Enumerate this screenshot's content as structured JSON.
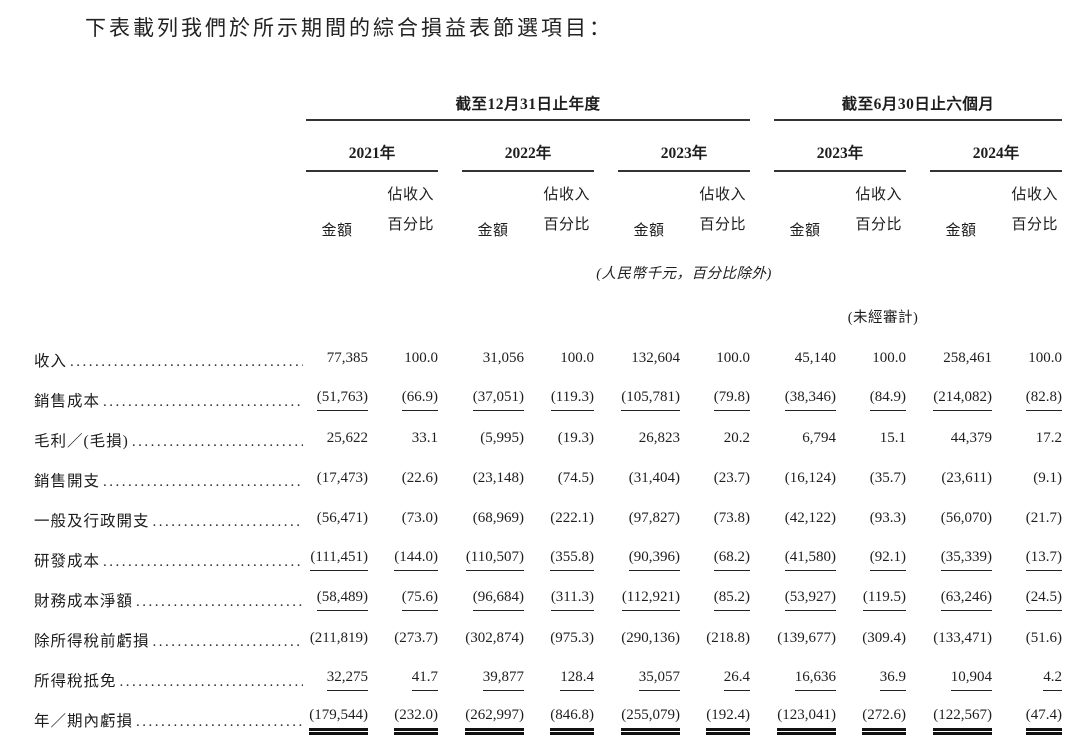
{
  "title": "下表載列我們於所示期間的綜合損益表節選項目：",
  "table": {
    "col_groups": [
      {
        "label": "截至12月31日止年度",
        "years": [
          "2021年",
          "2022年",
          "2023年"
        ]
      },
      {
        "label": "截至6月30日止六個月",
        "years": [
          "2023年",
          "2024年"
        ]
      }
    ],
    "subheaders": {
      "amount": "金額",
      "pct_line1": "佔收入",
      "pct_line2": "百分比"
    },
    "unit_note": "(人民幣千元，百分比除外)",
    "unaudited_note": "(未經審計)",
    "rows": [
      {
        "label": "收入",
        "bold": false,
        "underline": false,
        "double_underline": false,
        "values": [
          "77,385",
          "100.0",
          "31,056",
          "100.0",
          "132,604",
          "100.0",
          "45,140",
          "100.0",
          "258,461",
          "100.0"
        ]
      },
      {
        "label": "銷售成本",
        "bold": false,
        "underline": true,
        "double_underline": false,
        "values": [
          "(51,763)",
          "(66.9)",
          "(37,051)",
          "(119.3)",
          "(105,781)",
          "(79.8)",
          "(38,346)",
          "(84.9)",
          "(214,082)",
          "(82.8)"
        ]
      },
      {
        "label": "毛利／(毛損)",
        "bold": true,
        "underline": false,
        "double_underline": false,
        "values": [
          "25,622",
          "33.1",
          "(5,995)",
          "(19.3)",
          "26,823",
          "20.2",
          "6,794",
          "15.1",
          "44,379",
          "17.2"
        ]
      },
      {
        "label": "銷售開支",
        "bold": false,
        "underline": false,
        "double_underline": false,
        "values": [
          "(17,473)",
          "(22.6)",
          "(23,148)",
          "(74.5)",
          "(31,404)",
          "(23.7)",
          "(16,124)",
          "(35.7)",
          "(23,611)",
          "(9.1)"
        ]
      },
      {
        "label": "一般及行政開支",
        "bold": false,
        "underline": false,
        "double_underline": false,
        "values": [
          "(56,471)",
          "(73.0)",
          "(68,969)",
          "(222.1)",
          "(97,827)",
          "(73.8)",
          "(42,122)",
          "(93.3)",
          "(56,070)",
          "(21.7)"
        ]
      },
      {
        "label": "研發成本",
        "bold": false,
        "underline": true,
        "double_underline": false,
        "values": [
          "(111,451)",
          "(144.0)",
          "(110,507)",
          "(355.8)",
          "(90,396)",
          "(68.2)",
          "(41,580)",
          "(92.1)",
          "(35,339)",
          "(13.7)"
        ]
      },
      {
        "label": "財務成本淨額",
        "bold": false,
        "underline": true,
        "double_underline": false,
        "values": [
          "(58,489)",
          "(75.6)",
          "(96,684)",
          "(311.3)",
          "(112,921)",
          "(85.2)",
          "(53,927)",
          "(119.5)",
          "(63,246)",
          "(24.5)"
        ]
      },
      {
        "label": "除所得稅前虧損",
        "bold": true,
        "underline": false,
        "double_underline": false,
        "values": [
          "(211,819)",
          "(273.7)",
          "(302,874)",
          "(975.3)",
          "(290,136)",
          "(218.8)",
          "(139,677)",
          "(309.4)",
          "(133,471)",
          "(51.6)"
        ]
      },
      {
        "label": "所得稅抵免",
        "bold": false,
        "underline": true,
        "double_underline": false,
        "values": [
          "32,275",
          "41.7",
          "39,877",
          "128.4",
          "35,057",
          "26.4",
          "16,636",
          "36.9",
          "10,904",
          "4.2"
        ]
      },
      {
        "label": "年／期內虧損",
        "bold": true,
        "underline": false,
        "double_underline": true,
        "values": [
          "(179,544)",
          "(232.0)",
          "(262,997)",
          "(846.8)",
          "(255,079)",
          "(192.4)",
          "(123,041)",
          "(272.6)",
          "(122,567)",
          "(47.4)"
        ]
      }
    ]
  }
}
